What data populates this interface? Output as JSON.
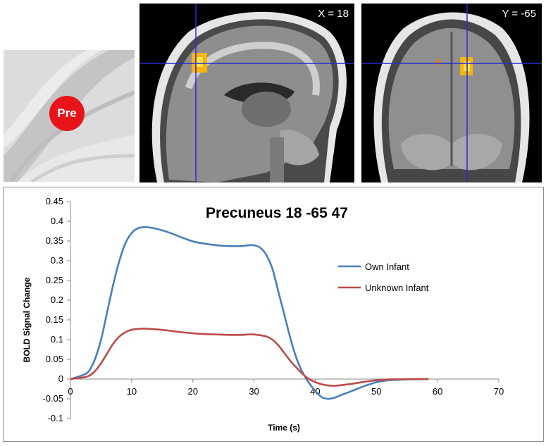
{
  "images": {
    "thumb_label": "Pre",
    "sagittal_coord": "X = 18",
    "coronal_coord": "Y = -65"
  },
  "colors": {
    "own_infant": "#4a7ebb",
    "unknown_infant": "#be4b48",
    "crosshair": "#2a2ad0",
    "roi_marker": "#e8141a"
  },
  "chart_data": {
    "type": "line",
    "title": "Precuneus 18 -65 47",
    "xlabel": "Time (s)",
    "ylabel": "BOLD Signal Change",
    "xlim": [
      0,
      70
    ],
    "ylim": [
      -0.1,
      0.45
    ],
    "x_ticks": [
      0,
      10,
      20,
      30,
      40,
      50,
      60,
      70
    ],
    "y_ticks": [
      -0.1,
      -0.05,
      0,
      0.05,
      0.1,
      0.15,
      0.2,
      0.25,
      0.3,
      0.35,
      0.4,
      0.45
    ],
    "x_tick_labels": [
      "0",
      "10",
      "20",
      "30",
      "40",
      "50",
      "60",
      "70"
    ],
    "y_tick_labels": [
      "-0.1",
      "-0.05",
      "0",
      "0.05",
      "0.1",
      "0.15",
      "0.2",
      "0.25",
      "0.3",
      "0.35",
      "0.4",
      "0.45"
    ],
    "grid": false,
    "legend_position": "right",
    "series": [
      {
        "name": "Own Infant",
        "x": [
          0,
          2,
          3,
          4,
          5,
          6,
          7,
          8,
          9,
          10,
          11,
          12,
          13,
          14,
          16,
          18,
          20,
          22,
          24,
          26,
          28,
          29,
          30,
          31,
          32,
          33,
          34,
          35,
          36,
          37,
          38,
          39,
          40,
          41,
          42,
          43,
          44,
          46,
          48,
          50,
          52,
          55,
          58.5
        ],
        "y": [
          0,
          0.01,
          0.02,
          0.05,
          0.1,
          0.17,
          0.24,
          0.3,
          0.345,
          0.37,
          0.382,
          0.385,
          0.384,
          0.381,
          0.372,
          0.36,
          0.349,
          0.343,
          0.339,
          0.337,
          0.337,
          0.339,
          0.339,
          0.333,
          0.315,
          0.28,
          0.22,
          0.16,
          0.1,
          0.05,
          0.015,
          -0.01,
          -0.03,
          -0.045,
          -0.05,
          -0.048,
          -0.042,
          -0.03,
          -0.018,
          -0.008,
          -0.003,
          -0.001,
          0
        ]
      },
      {
        "name": "Unknown Infant",
        "x": [
          0,
          2,
          3,
          4,
          5,
          6,
          7,
          8,
          9,
          10,
          11,
          12,
          13,
          14,
          16,
          18,
          20,
          22,
          24,
          26,
          28,
          29,
          30,
          31,
          32,
          33,
          34,
          35,
          36,
          37,
          38,
          39,
          40,
          41,
          42,
          43,
          44,
          46,
          48,
          50,
          52,
          55,
          58.5
        ],
        "y": [
          0,
          0.004,
          0.008,
          0.02,
          0.04,
          0.065,
          0.09,
          0.108,
          0.119,
          0.125,
          0.127,
          0.128,
          0.127,
          0.126,
          0.123,
          0.119,
          0.116,
          0.114,
          0.113,
          0.112,
          0.112,
          0.113,
          0.113,
          0.111,
          0.108,
          0.1,
          0.085,
          0.065,
          0.045,
          0.028,
          0.012,
          0,
          -0.008,
          -0.013,
          -0.016,
          -0.017,
          -0.016,
          -0.012,
          -0.007,
          -0.003,
          -0.001,
          0,
          0
        ]
      }
    ]
  }
}
